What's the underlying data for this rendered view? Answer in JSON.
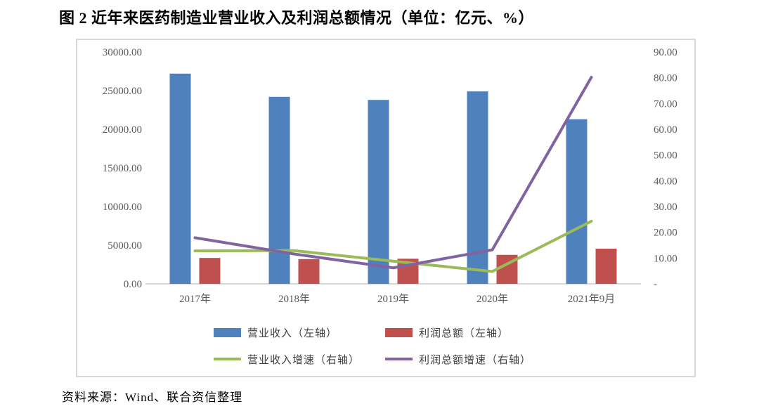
{
  "page": {
    "title": "图 2  近年来医药制造业营业收入及利润总额情况（单位：亿元、%）",
    "source": "资料来源：Wind、联合资信整理"
  },
  "chart_data": {
    "type": "combo-bar-line-dual-axis",
    "title": "图 2  近年来医药制造业营业收入及利润总额情况（单位：亿元、%）",
    "categories": [
      "2017年",
      "2018年",
      "2019年",
      "2020年",
      "2021年9月"
    ],
    "y_left": {
      "unit": "亿元",
      "max": 30000,
      "min": 0,
      "step": 5000,
      "ticks": [
        "30000.00",
        "25000.00",
        "20000.00",
        "15000.00",
        "10000.00",
        "5000.00",
        "0.00"
      ]
    },
    "y_right": {
      "unit": "%",
      "max": 90,
      "min": 0,
      "step": 10,
      "ticks": [
        "90.00",
        "80.00",
        "70.00",
        "60.00",
        "50.00",
        "40.00",
        "30.00",
        "20.00",
        "10.00",
        "-"
      ]
    },
    "series": [
      {
        "name": "营业收入（左轴）",
        "type": "bar",
        "axis": "left",
        "color": "#4F81BD",
        "values": [
          27200,
          24200,
          23800,
          24900,
          21300
        ]
      },
      {
        "name": "利润总额（左轴）",
        "type": "bar",
        "axis": "left",
        "color": "#C0504D",
        "values": [
          3350,
          3200,
          3250,
          3750,
          4550
        ]
      },
      {
        "name": "营业收入增速（右轴）",
        "type": "line",
        "axis": "right",
        "color": "#9BBB59",
        "values": [
          12.8,
          12.9,
          8.8,
          4.8,
          24.3
        ]
      },
      {
        "name": "利润总额增速（右轴）",
        "type": "line",
        "axis": "right",
        "color": "#8064A2",
        "values": [
          17.9,
          11.6,
          6.2,
          13.2,
          80.2
        ]
      }
    ],
    "legend_position": "bottom",
    "grid": "off",
    "colors": {
      "axis_text": "#595959",
      "baseline": "#d6d6d6",
      "frame_border": "#d9d9d9"
    }
  }
}
